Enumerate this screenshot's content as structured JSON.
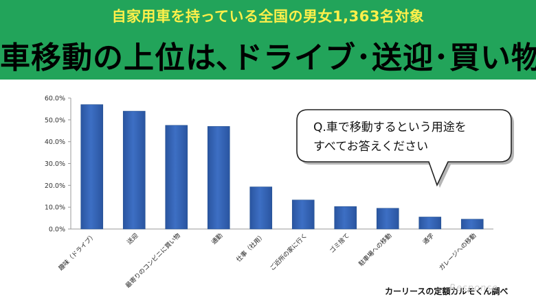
{
  "header": {
    "subtitle": "自家用車を持っている全国の男女1,363名対象",
    "headline": "車移動の上位は､ドライブ･送迎･買い物"
  },
  "callout": {
    "line1": "Q.車で移動するという用途を",
    "line2": "すべてお答えください"
  },
  "credit": "カーリースの定額カルモくん調べ",
  "watermark": "Response",
  "colors": {
    "header_bg": "#22a45a",
    "subtitle": "#fff04a",
    "bar": "#3d6fc4",
    "bar_dark": "#2a55a0"
  },
  "chart_data": {
    "type": "bar",
    "title": "",
    "xlabel": "",
    "ylabel": "",
    "ylim": [
      0,
      0.6
    ],
    "yticks": [
      "0.0%",
      "10.0%",
      "20.0%",
      "30.0%",
      "40.0%",
      "50.0%",
      "60.0%"
    ],
    "grid": false,
    "categories": [
      "趣味（ドライブ）",
      "送迎",
      "最寄りのコンビニに買い物",
      "通勤",
      "仕事（社用）",
      "ご近所の家に行く",
      "ゴミ捨て",
      "駐車場への移動",
      "通学",
      "ガレージへの移動"
    ],
    "values": [
      0.57,
      0.54,
      0.475,
      0.47,
      0.193,
      0.133,
      0.103,
      0.095,
      0.055,
      0.045
    ]
  }
}
